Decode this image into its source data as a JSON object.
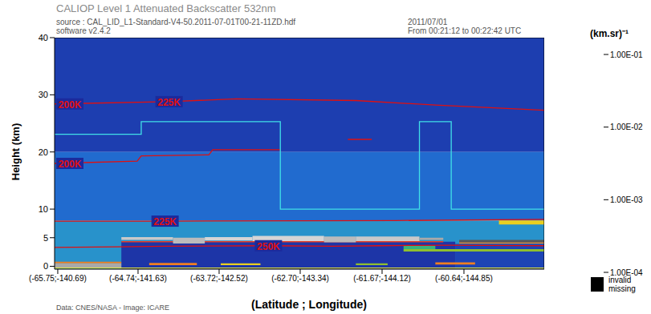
{
  "chart_data": {
    "type": "heatmap",
    "title": "CALIOP Level 1 Attenuated Backscatter 532nm",
    "subtitle": [
      "source : CAL_LID_L1-Standard-V4-50.2011-07-01T00-21-11ZD.hdf",
      "software v2.4.2"
    ],
    "date": [
      "2011/07/01",
      "From 00:21:12 to 00:22:42 UTC"
    ],
    "x_label": "(Latitude ; Longitude)",
    "y_label": "Height (km)",
    "footer": "Data: CNES/NASA - Image: ICARE",
    "xlim": [
      -65.79,
      -59.63
    ],
    "xticks": [
      {
        "value": -65.75,
        "label": "(-65.75;-140.69)"
      },
      {
        "value": -64.74,
        "label": "(-64.74;-141.63)"
      },
      {
        "value": -63.72,
        "label": "(-63.72;-142.52)"
      },
      {
        "value": -62.7,
        "label": "(-62.70;-143.34)"
      },
      {
        "value": -61.67,
        "label": "(-61.67;-144.12)"
      },
      {
        "value": -60.64,
        "label": "(-60.64;-144.85)"
      }
    ],
    "ylim": [
      -0.5,
      40
    ],
    "yticks": [
      0,
      5,
      10,
      20,
      30,
      40
    ],
    "colorbar": {
      "label": "(km.sr)⁻¹",
      "range": [
        0.0001,
        0.1
      ],
      "ticks": [
        {
          "value": 0.0001,
          "label": "1.00E-04"
        },
        {
          "value": 0.001,
          "label": "1.00E-03"
        },
        {
          "value": 0.01,
          "label": "1.00E-02"
        },
        {
          "value": 0.1,
          "label": "1.00E-01"
        }
      ],
      "log": true
    },
    "missing_legend": [
      "invalid",
      "missing"
    ],
    "cells": [
      {
        "x": [
          -65.79,
          -59.63
        ],
        "y": [
          20,
          40
        ],
        "value": 0.00013
      },
      {
        "x": [
          -65.79,
          -59.63
        ],
        "y": [
          8,
          20
        ],
        "value": 0.00022
      },
      {
        "x": [
          -65.79,
          -59.63
        ],
        "y": [
          -0.5,
          8
        ],
        "value": 0.0003
      },
      {
        "x": [
          -64.95,
          -60.75
        ],
        "y": [
          -0.5,
          4.3
        ],
        "value": 0.000115
      },
      {
        "x": [
          -60.75,
          -59.63
        ],
        "y": [
          -0.5,
          3.9
        ],
        "value": 0.00014
      },
      {
        "x": [
          -64.95,
          -60.9
        ],
        "y": [
          4.2,
          4.4
        ],
        "value": 0.0025
      },
      {
        "x": [
          -64.95,
          -64.3
        ],
        "y": [
          4.6,
          5.1
        ],
        "value": 0.025
      },
      {
        "x": [
          -64.3,
          -63.9
        ],
        "y": [
          4.0,
          5.0
        ],
        "value": 0.02
      },
      {
        "x": [
          -63.9,
          -63.3
        ],
        "y": [
          4.5,
          5.1
        ],
        "value": 0.03
      },
      {
        "x": [
          -63.3,
          -62.4
        ],
        "y": [
          4.4,
          5.3
        ],
        "value": 0.03
      },
      {
        "x": [
          -62.4,
          -62.0
        ],
        "y": [
          4.2,
          5.2
        ],
        "value": 0.02
      },
      {
        "x": [
          -62.0,
          -61.2
        ],
        "y": [
          4.4,
          5.2
        ],
        "value": 0.025
      },
      {
        "x": [
          -61.2,
          -60.9
        ],
        "y": [
          4.6,
          5.0
        ],
        "value": 0.015
      },
      {
        "x": [
          -60.7,
          -59.63
        ],
        "y": [
          4.0,
          4.2
        ],
        "value": 0.002
      },
      {
        "x": [
          -60.7,
          -59.63
        ],
        "y": [
          4.2,
          4.6
        ],
        "value": 0.006
      },
      {
        "x": [
          -61.4,
          -59.63
        ],
        "y": [
          2.6,
          3.0
        ],
        "value": 0.0012
      },
      {
        "x": [
          -61.4,
          -61.0
        ],
        "y": [
          3.0,
          3.6
        ],
        "value": 0.0008
      },
      {
        "x": [
          -65.79,
          -64.95
        ],
        "y": [
          0.5,
          0.8
        ],
        "value": 0.002
      },
      {
        "x": [
          -65.79,
          -64.95
        ],
        "y": [
          -0.3,
          0.5
        ],
        "value": 0.015
      },
      {
        "x": [
          -64.6,
          -64.0
        ],
        "y": [
          0.2,
          0.6
        ],
        "value": 0.002
      },
      {
        "x": [
          -63.7,
          -63.2
        ],
        "y": [
          0.2,
          0.5
        ],
        "value": 0.0015
      },
      {
        "x": [
          -62.0,
          -61.6
        ],
        "y": [
          0.2,
          0.5
        ],
        "value": 0.0012
      },
      {
        "x": [
          -61.0,
          -60.5
        ],
        "y": [
          0.3,
          0.7
        ],
        "value": 0.002
      },
      {
        "x": [
          -60.2,
          -59.63
        ],
        "y": [
          7.3,
          8.0
        ],
        "value": 0.0015
      }
    ],
    "series": [
      {
        "type": "line",
        "line_style": "solid",
        "color": "#e01010",
        "x": [
          -65.79,
          -64.35,
          -63.5,
          -62.0,
          -61.0,
          -59.63
        ],
        "values": [
          28.4,
          28.8,
          29.3,
          29.0,
          28.2,
          27.3
        ],
        "annotations": [
          "200K",
          "225K"
        ]
      },
      {
        "type": "line",
        "line_style": "solid",
        "color": "#e01010",
        "x": [
          -65.79,
          -64.75,
          -64.7,
          -63.85,
          -63.8,
          -62.95,
          -62.5,
          -62.1,
          -61.8
        ],
        "values": [
          18.0,
          18.4,
          19.3,
          19.5,
          20.4,
          20.4,
          null,
          22.2,
          22.2
        ],
        "annotations": [
          "200K"
        ]
      },
      {
        "type": "line",
        "line_style": "solid",
        "color": "#e01010",
        "x": [
          -65.79,
          -64.4,
          -61.5,
          -59.63
        ],
        "values": [
          7.9,
          7.9,
          8.0,
          8.2
        ],
        "annotations": [
          "225K"
        ]
      },
      {
        "type": "line",
        "line_style": "solid",
        "color": "#e01010",
        "x": [
          -65.79,
          -65.0,
          -64.4,
          -63.1,
          -62.3,
          -61.7,
          -60.8,
          -59.63
        ],
        "values": [
          3.3,
          3.4,
          3.5,
          3.6,
          3.5,
          3.6,
          3.7,
          3.6
        ],
        "annotations": [
          "250K"
        ]
      },
      {
        "type": "line",
        "line_style": "step",
        "color": "#40e0e8",
        "x": [
          -65.79,
          -64.7,
          -62.95,
          -61.2,
          -60.8,
          -59.63
        ],
        "values": [
          23.1,
          25.3,
          10,
          25.3,
          10,
          10
        ]
      },
      {
        "type": "line",
        "line_style": "solid",
        "color": "#e8e840",
        "x": [
          -65.79,
          -59.63
        ],
        "values": [
          -0.3,
          -0.3
        ]
      }
    ]
  }
}
